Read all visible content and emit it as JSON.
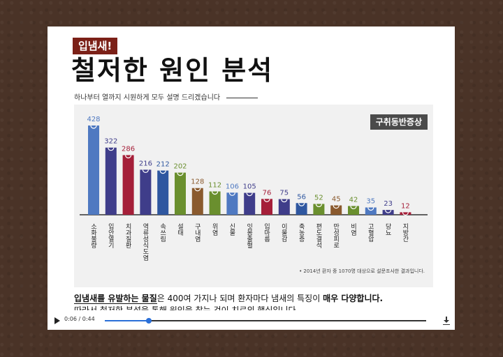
{
  "slide": {
    "tag": "입냄새!",
    "title": "철저한 원인 분석",
    "subtitle": "하나부터 열까지 시원하게 모두 설명 드리겠습니다"
  },
  "chart_data": {
    "type": "bar",
    "legend": "구취동반증상",
    "categories": [
      "소화불량",
      "입안열기",
      "치과질환",
      "역류성식도염",
      "속쓰림",
      "설태",
      "구내염",
      "위염",
      "신물",
      "잇몸출혈",
      "입마름",
      "이물감",
      "축농증",
      "편도결석",
      "만성피로",
      "비염",
      "고혈압",
      "당뇨",
      "지방간"
    ],
    "values": [
      428,
      322,
      286,
      216,
      212,
      202,
      128,
      112,
      106,
      105,
      76,
      75,
      56,
      52,
      45,
      42,
      35,
      23,
      12
    ],
    "colors": [
      "#4f79c1",
      "#3f3d8a",
      "#a51f39",
      "#3f3d8a",
      "#2f57a0",
      "#6a8f2e",
      "#8a5a2e",
      "#6a8f2e",
      "#4f79c1",
      "#3f3d8a",
      "#a51f39",
      "#3f3d8a",
      "#2f57a0",
      "#6a8f2e",
      "#8a5a2e",
      "#6a8f2e",
      "#4f79c1",
      "#3f3d8a",
      "#a51f39"
    ],
    "footnote": "• 2014년 환자 중 1070명 대상으로 설문조사한 결과입니다."
  },
  "body": {
    "p1_a": "입냄새를 유발하는 물질",
    "p1_b": "은 400여 가지나 되며 환자마다 냄새의 특징이 ",
    "p1_c": "매우 다양합니다.",
    "p2": "따라서 철저한 분석을 통해 원인을 찾는 것이 치료의 핵심입니다."
  },
  "player": {
    "time": "0:06 / 0:44",
    "progress": 0.136
  }
}
